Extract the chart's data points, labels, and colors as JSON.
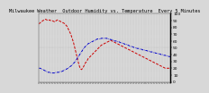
{
  "title": "Milwaukee Weather  Outdoor Humidity vs. Temperature  Every 5 Minutes",
  "line1_color": "#cc0000",
  "line2_color": "#0000cc",
  "line1_style": "--",
  "line2_style": "-.",
  "bg_color": "#d8d8d8",
  "plot_bg": "#d8d8d8",
  "ylim": [
    0,
    100
  ],
  "humidity": [
    85,
    87,
    88,
    90,
    91,
    92,
    91,
    90,
    91,
    90,
    90,
    89,
    88,
    90,
    91,
    90,
    89,
    88,
    87,
    86,
    84,
    82,
    78,
    74,
    70,
    64,
    58,
    50,
    42,
    34,
    26,
    20,
    18,
    20,
    24,
    28,
    30,
    34,
    36,
    38,
    40,
    42,
    44,
    46,
    48,
    50,
    52,
    54,
    55,
    56,
    57,
    58,
    59,
    60,
    61,
    60,
    59,
    58,
    57,
    56,
    55,
    54,
    53,
    52,
    51,
    50,
    49,
    48,
    47,
    46,
    45,
    44,
    43,
    42,
    41,
    40,
    39,
    38,
    37,
    36,
    35,
    34,
    33,
    32,
    31,
    30,
    29,
    28,
    27,
    26,
    25,
    24,
    23,
    22,
    21,
    20,
    20,
    20,
    20,
    20
  ],
  "temperature": [
    20,
    20,
    19,
    18,
    17,
    16,
    15,
    14,
    14,
    13,
    13,
    13,
    13,
    14,
    14,
    14,
    15,
    15,
    16,
    17,
    18,
    19,
    20,
    22,
    23,
    25,
    27,
    29,
    32,
    35,
    38,
    41,
    44,
    47,
    50,
    52,
    54,
    56,
    57,
    58,
    59,
    60,
    61,
    62,
    63,
    63,
    63,
    64,
    64,
    64,
    64,
    64,
    63,
    63,
    62,
    62,
    61,
    60,
    60,
    59,
    59,
    58,
    57,
    57,
    56,
    55,
    55,
    54,
    53,
    52,
    52,
    51,
    50,
    50,
    49,
    49,
    48,
    48,
    47,
    47,
    46,
    46,
    45,
    45,
    44,
    44,
    43,
    43,
    42,
    42,
    41,
    41,
    40,
    40,
    39,
    39,
    38,
    38,
    37,
    37
  ],
  "title_fontsize": 3.8,
  "tick_fontsize": 3.2,
  "linewidth": 0.7,
  "right_ytick_labels": [
    "90",
    "80",
    "70",
    "60",
    "50",
    "40",
    "30",
    "20",
    "10"
  ]
}
